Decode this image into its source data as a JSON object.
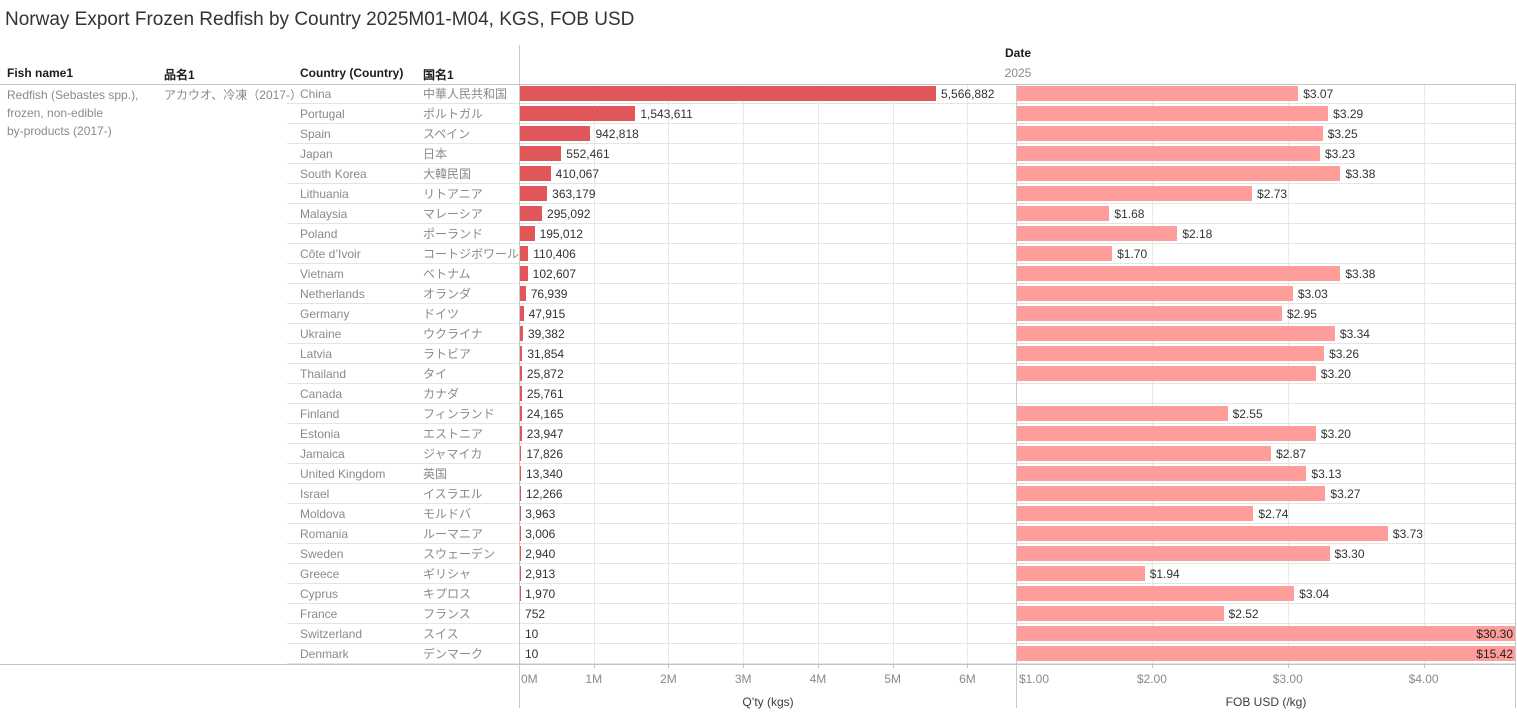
{
  "title": "Norway Export Frozen Redfish by Country 2025M01-M04, KGS, FOB USD",
  "columns": {
    "fish_name": "Fish name1",
    "fish_name_jp": "品名1",
    "country": "Country (Country)",
    "country_jp": "国名1"
  },
  "date_header": {
    "label": "Date",
    "year": "2025"
  },
  "fish_product": {
    "name_en": "Redfish (Sebastes spp.),\nfrozen, non-edible\nby-products (2017-)",
    "name_jp": "アカウオ、冷凍（2017-）"
  },
  "colors": {
    "qty_bar": "#e15759",
    "fob_bar": "#ff9d9a",
    "row_divider": "#e4e4e4",
    "pane_border": "#c4c4c4",
    "gridline": "#e9e9e9",
    "label_gray": "#8a8a8a",
    "label_dark": "#333333"
  },
  "chart_data": [
    {
      "type": "bar",
      "orientation": "horizontal",
      "title": "Q'ty (kgs)",
      "xlabel": "Q’ty (kgs)",
      "xlim": [
        0,
        6650000
      ],
      "grid": true,
      "bar_color": "#e15759",
      "tick_values": [
        0,
        1000000,
        2000000,
        3000000,
        4000000,
        5000000,
        6000000
      ],
      "tick_labels": [
        "0M",
        "1M",
        "2M",
        "3M",
        "4M",
        "5M",
        "6M"
      ],
      "categories": [
        "China",
        "Portugal",
        "Spain",
        "Japan",
        "South Korea",
        "Lithuania",
        "Malaysia",
        "Poland",
        "Côte d’Ivoir",
        "Vietnam",
        "Netherlands",
        "Germany",
        "Ukraine",
        "Latvia",
        "Thailand",
        "Canada",
        "Finland",
        "Estonia",
        "Jamaica",
        "United Kingdom",
        "Israel",
        "Moldova",
        "Romania",
        "Sweden",
        "Greece",
        "Cyprus",
        "France",
        "Switzerland",
        "Denmark"
      ],
      "categories_jp": [
        "中華人民共和国",
        "ポルトガル",
        "スペイン",
        "日本",
        "大韓民国",
        "リトアニア",
        "マレーシア",
        "ポーランド",
        "コートジボワール",
        "ベトナム",
        "オランダ",
        "ドイツ",
        "ウクライナ",
        "ラトビア",
        "タイ",
        "カナダ",
        "フィンランド",
        "エストニア",
        "ジャマイカ",
        "英国",
        "イスラエル",
        "モルドバ",
        "ルーマニア",
        "スウェーデン",
        "ギリシャ",
        "キプロス",
        "フランス",
        "スイス",
        "デンマーク"
      ],
      "values": [
        5566882,
        1543611,
        942818,
        552461,
        410067,
        363179,
        295092,
        195012,
        110406,
        102607,
        76939,
        47915,
        39382,
        31854,
        25872,
        25761,
        24165,
        23947,
        17826,
        13340,
        12266,
        3963,
        3006,
        2940,
        2913,
        1970,
        752,
        10,
        10
      ],
      "value_labels": [
        "5,566,882",
        "1,543,611",
        "942,818",
        "552,461",
        "410,067",
        "363,179",
        "295,092",
        "195,012",
        "110,406",
        "102,607",
        "76,939",
        "47,915",
        "39,382",
        "31,854",
        "25,872",
        "25,761",
        "24,165",
        "23,947",
        "17,826",
        "13,340",
        "12,266",
        "3,963",
        "3,006",
        "2,940",
        "2,913",
        "1,970",
        "752",
        "10",
        "10"
      ]
    },
    {
      "type": "bar",
      "orientation": "horizontal",
      "title": "FOB USD (/kg)",
      "xlabel": "FOB USD (/kg)",
      "xlim": [
        1.0,
        4.68
      ],
      "grid": true,
      "bar_color": "#ff9d9a",
      "tick_values": [
        1,
        2,
        3,
        4
      ],
      "tick_labels": [
        "$1.00",
        "$2.00",
        "$3.00",
        "$4.00"
      ],
      "categories": [
        "China",
        "Portugal",
        "Spain",
        "Japan",
        "South Korea",
        "Lithuania",
        "Malaysia",
        "Poland",
        "Côte d’Ivoir",
        "Vietnam",
        "Netherlands",
        "Germany",
        "Ukraine",
        "Latvia",
        "Thailand",
        "Canada",
        "Finland",
        "Estonia",
        "Jamaica",
        "United Kingdom",
        "Israel",
        "Moldova",
        "Romania",
        "Sweden",
        "Greece",
        "Cyprus",
        "France",
        "Switzerland",
        "Denmark"
      ],
      "values": [
        3.07,
        3.29,
        3.25,
        3.23,
        3.38,
        2.73,
        1.68,
        2.18,
        1.7,
        3.38,
        3.03,
        2.95,
        3.34,
        3.26,
        3.2,
        null,
        2.55,
        3.2,
        2.87,
        3.13,
        3.27,
        2.74,
        3.73,
        3.3,
        1.94,
        3.04,
        2.52,
        30.3,
        15.42
      ],
      "value_labels": [
        "$3.07",
        "$3.29",
        "$3.25",
        "$3.23",
        "$3.38",
        "$2.73",
        "$1.68",
        "$2.18",
        "$1.70",
        "$3.38",
        "$3.03",
        "$2.95",
        "$3.34",
        "$3.26",
        "$3.20",
        "",
        "$2.55",
        "$3.20",
        "$2.87",
        "$3.13",
        "$3.27",
        "$2.74",
        "$3.73",
        "$3.30",
        "$1.94",
        "$3.04",
        "$2.52",
        "$30.30",
        "$15.42"
      ]
    }
  ]
}
